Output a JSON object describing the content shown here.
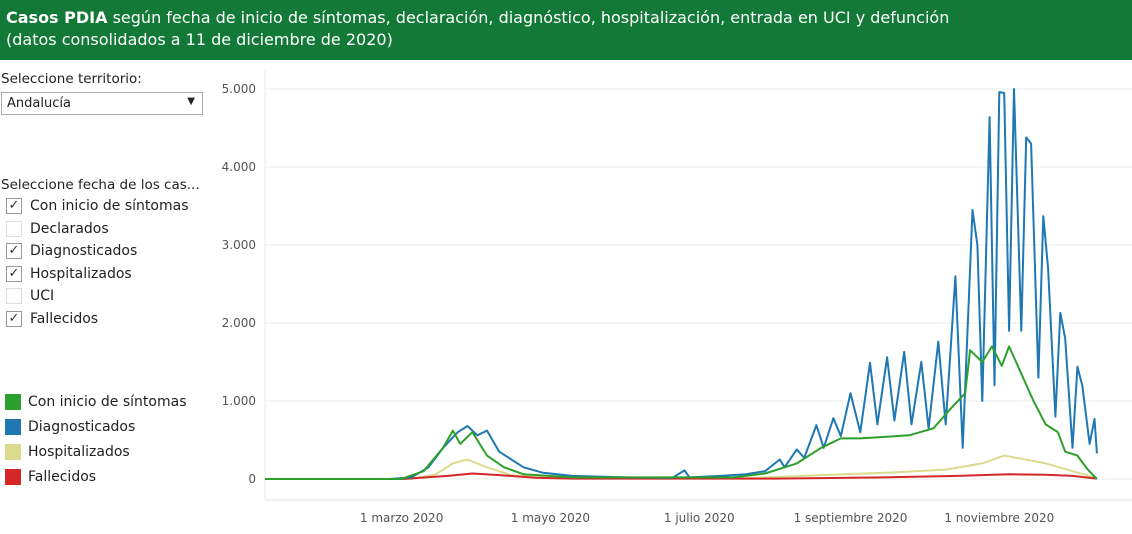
{
  "header": {
    "title_bold": "Casos PDIA",
    "title_rest": " según fecha de inicio de síntomas, declaración, diagnóstico, hospitalización, entrada en UCI y defunción",
    "subtitle": "(datos consolidados a 11 de diciembre de 2020)"
  },
  "territory": {
    "label": "Seleccione territorio:",
    "value": "Andalucía"
  },
  "date_filter": {
    "label": "Seleccione fecha de los cas...",
    "options": [
      {
        "label": "Con inicio de síntomas",
        "checked": true
      },
      {
        "label": "Declarados",
        "checked": false
      },
      {
        "label": "Diagnosticados",
        "checked": true
      },
      {
        "label": "Hospitalizados",
        "checked": true
      },
      {
        "label": "UCI",
        "checked": false
      },
      {
        "label": "Fallecidos",
        "checked": true
      }
    ]
  },
  "legend": [
    {
      "label": "Con inicio de síntomas",
      "color": "#2ca02c"
    },
    {
      "label": "Diagnosticados",
      "color": "#1f77b4"
    },
    {
      "label": "Hospitalizados",
      "color": "#dbdb8d"
    },
    {
      "label": "Fallecidos",
      "color": "#d62728"
    }
  ],
  "chart_data": {
    "type": "line",
    "xlim": [
      "2020-01-05",
      "2020-12-18"
    ],
    "ylim": [
      0,
      5000
    ],
    "yticks": [
      {
        "v": 0,
        "label": "0"
      },
      {
        "v": 1000,
        "label": "1.000"
      },
      {
        "v": 2000,
        "label": "2.000"
      },
      {
        "v": 3000,
        "label": "3.000"
      },
      {
        "v": 4000,
        "label": "4.000"
      },
      {
        "v": 5000,
        "label": "5.000"
      }
    ],
    "xticks": [
      {
        "d": "2020-03-01",
        "label": "1 marzo 2020"
      },
      {
        "d": "2020-05-01",
        "label": "1 mayo 2020"
      },
      {
        "d": "2020-07-01",
        "label": "1 julio 2020"
      },
      {
        "d": "2020-09-01",
        "label": "1 septiembre 2020"
      },
      {
        "d": "2020-11-01",
        "label": "1 noviembre 2020"
      }
    ],
    "grid": true,
    "series": [
      {
        "name": "Hospitalizados",
        "color": "#dbdb8d",
        "points": [
          [
            "2020-01-05",
            0
          ],
          [
            "2020-03-05",
            0
          ],
          [
            "2020-03-15",
            60
          ],
          [
            "2020-03-22",
            200
          ],
          [
            "2020-03-28",
            250
          ],
          [
            "2020-04-05",
            150
          ],
          [
            "2020-04-15",
            50
          ],
          [
            "2020-05-01",
            10
          ],
          [
            "2020-07-20",
            10
          ],
          [
            "2020-08-20",
            50
          ],
          [
            "2020-09-15",
            80
          ],
          [
            "2020-10-10",
            120
          ],
          [
            "2020-10-25",
            200
          ],
          [
            "2020-11-03",
            300
          ],
          [
            "2020-11-10",
            260
          ],
          [
            "2020-11-20",
            200
          ],
          [
            "2020-12-01",
            100
          ],
          [
            "2020-12-11",
            10
          ]
        ]
      },
      {
        "name": "Fallecidos",
        "color": "#d62728",
        "points": [
          [
            "2020-03-01",
            0
          ],
          [
            "2020-03-20",
            40
          ],
          [
            "2020-03-30",
            70
          ],
          [
            "2020-04-10",
            50
          ],
          [
            "2020-04-25",
            15
          ],
          [
            "2020-05-10",
            5
          ],
          [
            "2020-08-01",
            5
          ],
          [
            "2020-09-15",
            20
          ],
          [
            "2020-10-15",
            40
          ],
          [
            "2020-11-05",
            60
          ],
          [
            "2020-11-20",
            55
          ],
          [
            "2020-12-01",
            40
          ],
          [
            "2020-12-11",
            5
          ]
        ]
      },
      {
        "name": "Diagnosticados",
        "color": "#1f77b4",
        "points": [
          [
            "2020-01-05",
            0
          ],
          [
            "2020-02-25",
            0
          ],
          [
            "2020-03-05",
            20
          ],
          [
            "2020-03-12",
            150
          ],
          [
            "2020-03-18",
            400
          ],
          [
            "2020-03-24",
            600
          ],
          [
            "2020-03-28",
            680
          ],
          [
            "2020-04-01",
            560
          ],
          [
            "2020-04-05",
            620
          ],
          [
            "2020-04-10",
            350
          ],
          [
            "2020-04-15",
            250
          ],
          [
            "2020-04-20",
            150
          ],
          [
            "2020-04-28",
            80
          ],
          [
            "2020-05-10",
            40
          ],
          [
            "2020-06-01",
            20
          ],
          [
            "2020-06-20",
            15
          ],
          [
            "2020-06-25",
            110
          ],
          [
            "2020-06-27",
            20
          ],
          [
            "2020-07-10",
            40
          ],
          [
            "2020-07-20",
            60
          ],
          [
            "2020-07-28",
            100
          ],
          [
            "2020-08-03",
            250
          ],
          [
            "2020-08-05",
            150
          ],
          [
            "2020-08-10",
            380
          ],
          [
            "2020-08-13",
            270
          ],
          [
            "2020-08-18",
            690
          ],
          [
            "2020-08-21",
            400
          ],
          [
            "2020-08-25",
            780
          ],
          [
            "2020-08-28",
            550
          ],
          [
            "2020-09-01",
            1100
          ],
          [
            "2020-09-05",
            600
          ],
          [
            "2020-09-09",
            1490
          ],
          [
            "2020-09-12",
            700
          ],
          [
            "2020-09-16",
            1560
          ],
          [
            "2020-09-19",
            750
          ],
          [
            "2020-09-23",
            1630
          ],
          [
            "2020-09-26",
            700
          ],
          [
            "2020-09-30",
            1500
          ],
          [
            "2020-10-03",
            650
          ],
          [
            "2020-10-07",
            1760
          ],
          [
            "2020-10-10",
            700
          ],
          [
            "2020-10-14",
            2600
          ],
          [
            "2020-10-17",
            400
          ],
          [
            "2020-10-21",
            3450
          ],
          [
            "2020-10-23",
            3000
          ],
          [
            "2020-10-25",
            1000
          ],
          [
            "2020-10-28",
            4640
          ],
          [
            "2020-10-30",
            1200
          ],
          [
            "2020-11-01",
            4960
          ],
          [
            "2020-11-03",
            4950
          ],
          [
            "2020-11-05",
            1900
          ],
          [
            "2020-11-07",
            5000
          ],
          [
            "2020-11-10",
            1900
          ],
          [
            "2020-11-12",
            4380
          ],
          [
            "2020-11-14",
            4300
          ],
          [
            "2020-11-17",
            1300
          ],
          [
            "2020-11-19",
            3370
          ],
          [
            "2020-11-21",
            2700
          ],
          [
            "2020-11-24",
            800
          ],
          [
            "2020-11-26",
            2130
          ],
          [
            "2020-11-28",
            1800
          ],
          [
            "2020-12-01",
            400
          ],
          [
            "2020-12-03",
            1440
          ],
          [
            "2020-12-05",
            1200
          ],
          [
            "2020-12-08",
            450
          ],
          [
            "2020-12-10",
            770
          ],
          [
            "2020-12-11",
            330
          ]
        ]
      },
      {
        "name": "Con inicio de síntomas",
        "color": "#2ca02c",
        "points": [
          [
            "2020-01-05",
            0
          ],
          [
            "2020-03-01",
            0
          ],
          [
            "2020-03-10",
            100
          ],
          [
            "2020-03-18",
            400
          ],
          [
            "2020-03-22",
            620
          ],
          [
            "2020-03-25",
            450
          ],
          [
            "2020-03-30",
            600
          ],
          [
            "2020-04-05",
            300
          ],
          [
            "2020-04-12",
            150
          ],
          [
            "2020-04-20",
            60
          ],
          [
            "2020-05-10",
            20
          ],
          [
            "2020-07-15",
            20
          ],
          [
            "2020-07-28",
            70
          ],
          [
            "2020-08-10",
            200
          ],
          [
            "2020-08-20",
            400
          ],
          [
            "2020-08-28",
            520
          ],
          [
            "2020-09-05",
            520
          ],
          [
            "2020-09-15",
            540
          ],
          [
            "2020-09-25",
            560
          ],
          [
            "2020-10-05",
            650
          ],
          [
            "2020-10-12",
            900
          ],
          [
            "2020-10-18",
            1100
          ],
          [
            "2020-10-20",
            1650
          ],
          [
            "2020-10-25",
            1500
          ],
          [
            "2020-10-29",
            1700
          ],
          [
            "2020-11-02",
            1450
          ],
          [
            "2020-11-05",
            1700
          ],
          [
            "2020-11-10",
            1350
          ],
          [
            "2020-11-15",
            1000
          ],
          [
            "2020-11-20",
            700
          ],
          [
            "2020-11-25",
            600
          ],
          [
            "2020-11-28",
            350
          ],
          [
            "2020-12-03",
            300
          ],
          [
            "2020-12-07",
            130
          ],
          [
            "2020-12-11",
            0
          ]
        ]
      }
    ]
  }
}
